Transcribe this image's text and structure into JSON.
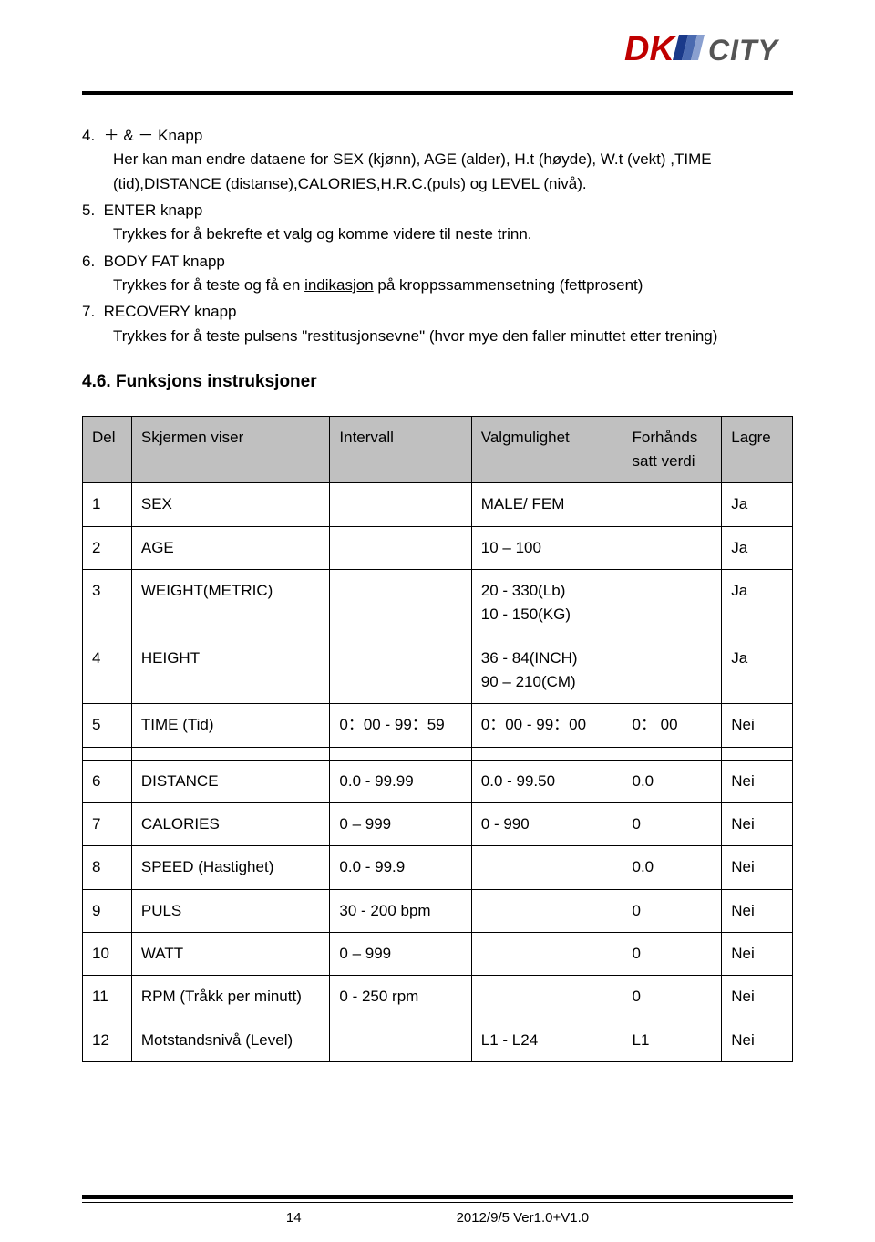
{
  "logo": {
    "dk": "DK",
    "city": "CITY",
    "dk_color": "#c00000",
    "city_color": "#555555"
  },
  "items": [
    {
      "n": "4.",
      "title": "＋ &  －  Knapp",
      "body": "Her kan man endre dataene for SEX (kjønn), AGE (alder), H.t (høyde), W.t (vekt) ,TIME (tid),DISTANCE (distanse),CALORIES,H.R.C.(puls) og LEVEL (nivå)."
    },
    {
      "n": "5.",
      "title": "ENTER   knapp",
      "body": "Trykkes for å bekrefte et valg og komme videre til neste trinn."
    },
    {
      "n": "6.",
      "title": "BODY FAT   knapp",
      "body_pre": "Trykkes for å teste og få en ",
      "body_u": "indikasjon",
      "body_post": " på kroppssammensetning (fettprosent)"
    },
    {
      "n": "7.",
      "title": "RECOVERY   knapp",
      "body": "Trykkes for å teste pulsens \"restitusjonsevne\" (hvor mye den faller minuttet etter trening)"
    }
  ],
  "section_title": "4.6. Funksjons instruksjoner",
  "table": {
    "headers": [
      "Del",
      "Skjermen viser",
      "Intervall",
      "Valgmulighet",
      "Forhånds satt verdi",
      "Lagre"
    ],
    "group1": [
      [
        "1",
        "SEX",
        "",
        "MALE/ FEM",
        "",
        "Ja"
      ],
      [
        "2",
        "AGE",
        "",
        "10 – 100",
        "",
        "Ja"
      ],
      [
        "3",
        "WEIGHT(METRIC)",
        "",
        "20 - 330(Lb)\n10 - 150(KG)",
        "",
        "Ja"
      ],
      [
        "4",
        "HEIGHT",
        "",
        "36 - 84(INCH)\n90 – 210(CM)",
        "",
        "Ja"
      ],
      [
        "5",
        "TIME (Tid)",
        "0：00 - 99：59",
        "0：00 - 99：00",
        "0： 00",
        "Nei"
      ]
    ],
    "group2": [
      [
        "6",
        "DISTANCE",
        "0.0 - 99.99",
        "0.0 - 99.50",
        "0.0",
        "Nei"
      ],
      [
        "7",
        "CALORIES",
        "0 – 999",
        "0 - 990",
        "0",
        "Nei"
      ],
      [
        "8",
        "SPEED (Hastighet)",
        "0.0 - 99.9",
        "",
        "0.0",
        "Nei"
      ],
      [
        "9",
        "PULS",
        "30 - 200 bpm",
        "",
        "0",
        "Nei"
      ],
      [
        "10",
        "WATT",
        "0 – 999",
        "",
        "0",
        "Nei"
      ],
      [
        "11",
        "RPM (Tråkk per minutt)",
        "0 - 250 rpm",
        "",
        "0",
        "Nei"
      ],
      [
        "12",
        "Motstandsnivå (Level)",
        "",
        "L1 - L24",
        "L1",
        "Nei"
      ]
    ]
  },
  "footer": {
    "page": "14",
    "version": "2012/9/5 Ver1.0+V1.0"
  }
}
